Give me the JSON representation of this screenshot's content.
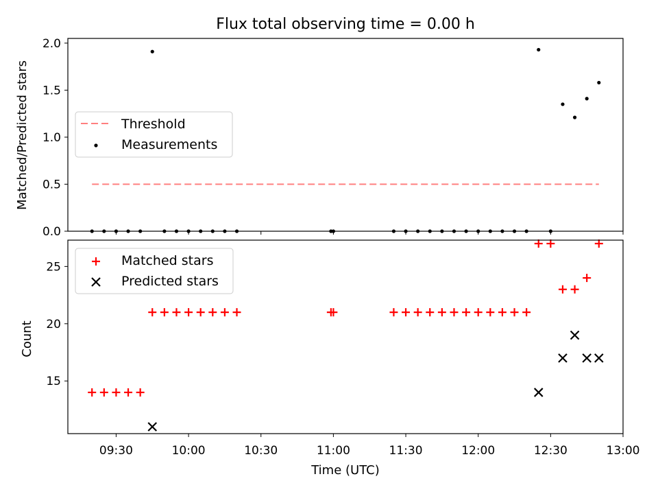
{
  "chart_data": [
    {
      "type": "scatter",
      "title": "Flux total observing time = 0.00 h",
      "ylabel": "Matched/Predicted stars",
      "ylim": [
        0,
        2.05
      ],
      "yticks": [
        0.0,
        0.5,
        1.0,
        1.5,
        2.0
      ],
      "ytick_labels": [
        "0.0",
        "0.5",
        "1.0",
        "1.5",
        "2.0"
      ],
      "legend_position": "center-left",
      "series": [
        {
          "name": "Threshold",
          "kind": "dashed-line",
          "color": "#ff7f7f",
          "x": [
            "09:20",
            "12:50"
          ],
          "y": [
            0.5,
            0.5
          ]
        },
        {
          "name": "Measurements",
          "kind": "dot",
          "color": "#000000",
          "x": [
            "09:20",
            "09:25",
            "09:30",
            "09:35",
            "09:40",
            "09:45",
            "09:50",
            "09:55",
            "10:00",
            "10:05",
            "10:10",
            "10:15",
            "10:20",
            "10:59",
            "11:00",
            "11:25",
            "11:30",
            "11:35",
            "11:40",
            "11:45",
            "11:50",
            "11:55",
            "12:00",
            "12:05",
            "12:10",
            "12:15",
            "12:20",
            "12:25",
            "12:30",
            "12:35",
            "12:40",
            "12:45",
            "12:50"
          ],
          "y": [
            0,
            0,
            0,
            0,
            0,
            1.91,
            0,
            0,
            0,
            0,
            0,
            0,
            0,
            0,
            0,
            0,
            0,
            0,
            0,
            0,
            0,
            0,
            0,
            0,
            0,
            0,
            0,
            1.93,
            0,
            1.35,
            1.21,
            1.41,
            1.58
          ]
        }
      ]
    },
    {
      "type": "scatter",
      "xlabel": "Time (UTC)",
      "ylabel": "Count",
      "ylim": [
        10.4,
        27.3
      ],
      "yticks": [
        15,
        20,
        25
      ],
      "ytick_labels": [
        "15",
        "20",
        "25"
      ],
      "xlim": [
        "09:10",
        "13:00"
      ],
      "xticks": [
        "09:30",
        "10:00",
        "10:30",
        "11:00",
        "11:30",
        "12:00",
        "12:30",
        "13:00"
      ],
      "legend_position": "top-left",
      "series": [
        {
          "name": "Matched stars",
          "marker": "plus",
          "color": "#ff0000",
          "x": [
            "09:20",
            "09:25",
            "09:30",
            "09:35",
            "09:40",
            "09:45",
            "09:50",
            "09:55",
            "10:00",
            "10:05",
            "10:10",
            "10:15",
            "10:20",
            "10:59",
            "11:00",
            "11:25",
            "11:30",
            "11:35",
            "11:40",
            "11:45",
            "11:50",
            "11:55",
            "12:00",
            "12:05",
            "12:10",
            "12:15",
            "12:20",
            "12:25",
            "12:30",
            "12:35",
            "12:40",
            "12:45",
            "12:50"
          ],
          "y": [
            14,
            14,
            14,
            14,
            14,
            21,
            21,
            21,
            21,
            21,
            21,
            21,
            21,
            21,
            21,
            21,
            21,
            21,
            21,
            21,
            21,
            21,
            21,
            21,
            21,
            21,
            21,
            27,
            27,
            23,
            23,
            24,
            27
          ]
        },
        {
          "name": "Predicted stars",
          "marker": "x",
          "color": "#000000",
          "x": [
            "09:45",
            "12:25",
            "12:35",
            "12:40",
            "12:45",
            "12:50"
          ],
          "y": [
            11,
            14,
            17,
            19,
            17,
            17
          ]
        }
      ]
    }
  ]
}
